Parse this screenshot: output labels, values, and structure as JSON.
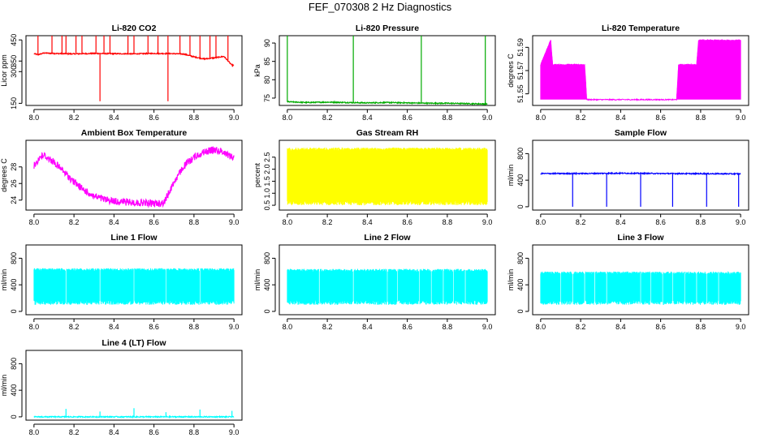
{
  "figure_title": "FEF_070308  2 Hz Diagnostics",
  "chart_data": [
    {
      "type": "line",
      "title": "Li-820 CO2",
      "ylabel": "Licor ppm",
      "xlabel": "",
      "color": "#ff0000",
      "xlim": [
        8.0,
        9.0
      ],
      "ylim": [
        140,
        470
      ],
      "xticks": [
        "8.0",
        "8.2",
        "8.4",
        "8.6",
        "8.8",
        "9.0"
      ],
      "yticks": [
        150,
        300,
        350,
        450
      ],
      "series": [
        {
          "x": [
            8.0,
            8.02,
            8.05,
            8.1,
            8.2,
            8.3,
            8.4,
            8.5,
            8.6,
            8.7,
            8.75,
            8.8,
            8.85,
            8.9,
            8.95,
            8.99
          ],
          "values": [
            385,
            380,
            388,
            386,
            384,
            386,
            385,
            384,
            386,
            385,
            383,
            370,
            360,
            365,
            372,
            330
          ]
        }
      ],
      "spikes_up": [
        8.02,
        8.09,
        8.14,
        8.16,
        8.21,
        8.24,
        8.31,
        8.35,
        8.38,
        8.47,
        8.5,
        8.57,
        8.62,
        8.67,
        8.73,
        8.78,
        8.83,
        8.88,
        8.91,
        8.97
      ],
      "spikes_down": [
        8.33,
        8.67
      ]
    },
    {
      "type": "line",
      "title": "Li-820 Pressure",
      "ylabel": "kPa",
      "xlabel": "",
      "color": "#00aa00",
      "xlim": [
        8.0,
        9.0
      ],
      "ylim": [
        73,
        92
      ],
      "xticks": [
        "8.0",
        "8.2",
        "8.4",
        "8.6",
        "8.8",
        "9.0"
      ],
      "yticks": [
        75,
        80,
        85,
        90
      ],
      "series": [
        {
          "x": [
            8.0,
            8.1,
            8.2,
            8.3,
            8.4,
            8.5,
            8.6,
            8.7,
            8.8,
            8.9,
            8.99
          ],
          "values": [
            74.0,
            73.8,
            73.9,
            73.8,
            73.7,
            73.8,
            73.7,
            73.6,
            73.6,
            73.5,
            73.4
          ]
        }
      ],
      "spikes_up": [
        8.0,
        8.33,
        8.67,
        8.99
      ]
    },
    {
      "type": "line",
      "title": "Li-820 Temperature",
      "ylabel": "degrees C",
      "xlabel": "",
      "color": "#ff00ff",
      "xlim": [
        8.0,
        9.0
      ],
      "ylim": [
        51.54,
        51.6
      ],
      "xticks": [
        "8.0",
        "8.2",
        "8.4",
        "8.6",
        "8.8",
        "9.0"
      ],
      "yticks": [
        51.55,
        51.57,
        51.59
      ],
      "series": [
        {
          "x": [
            8.0,
            8.05,
            8.06,
            8.22,
            8.23,
            8.68,
            8.69,
            8.78,
            8.79,
            8.99
          ],
          "values": [
            51.575,
            51.596,
            51.575,
            51.575,
            51.545,
            51.545,
            51.575,
            51.575,
            51.596,
            51.596
          ]
        }
      ]
    },
    {
      "type": "line",
      "title": "Ambient Box Temperature",
      "ylabel": "degrees C",
      "xlabel": "",
      "color": "#ff00ff",
      "xlim": [
        8.0,
        9.0
      ],
      "ylim": [
        22.8,
        31.2
      ],
      "xticks": [
        "8.0",
        "8.2",
        "8.4",
        "8.6",
        "8.8",
        "9.0"
      ],
      "yticks": [
        24,
        26,
        28
      ],
      "series": [
        {
          "x": [
            8.0,
            8.03,
            8.05,
            8.1,
            8.15,
            8.2,
            8.25,
            8.3,
            8.35,
            8.4,
            8.45,
            8.5,
            8.55,
            8.6,
            8.65,
            8.7,
            8.75,
            8.8,
            8.85,
            8.9,
            8.95,
            8.99
          ],
          "values": [
            28.5,
            29.6,
            29.8,
            29.0,
            27.8,
            26.6,
            25.6,
            24.9,
            24.5,
            24.3,
            24.2,
            24.1,
            24.1,
            24.0,
            24.1,
            26.6,
            28.5,
            29.6,
            30.2,
            30.5,
            30.2,
            29.6
          ]
        }
      ]
    },
    {
      "type": "line",
      "title": "Gas Stream RH",
      "ylabel": "percent",
      "xlabel": "",
      "color": "#ffff00",
      "xlim": [
        8.0,
        9.0
      ],
      "ylim": [
        0.3,
        3.2
      ],
      "xticks": [
        "8.0",
        "8.2",
        "8.4",
        "8.6",
        "8.8",
        "9.0"
      ],
      "yticks": [
        "0.5",
        "1.0",
        "1.5",
        "2.0",
        "2.5"
      ],
      "series": [
        {
          "x": [
            8.0,
            8.5,
            8.99
          ],
          "values": [
            2.9,
            2.9,
            2.9
          ],
          "min_values": [
            0.5,
            0.5,
            0.5
          ]
        }
      ]
    },
    {
      "type": "line",
      "title": "Sample Flow",
      "ylabel": "ml/min",
      "xlabel": "",
      "color": "#0000ff",
      "xlim": [
        8.0,
        9.0
      ],
      "ylim": [
        -50,
        1000
      ],
      "xticks": [
        "8.0",
        "8.2",
        "8.4",
        "8.6",
        "8.8",
        "9.0"
      ],
      "yticks": [
        0,
        400,
        800
      ],
      "series": [
        {
          "x": [
            8.0,
            8.2,
            8.4,
            8.6,
            8.8,
            8.99
          ],
          "values": [
            500,
            500,
            505,
            500,
            498,
            495
          ]
        }
      ],
      "spikes_down": [
        8.16,
        8.33,
        8.5,
        8.66,
        8.83,
        8.99
      ]
    },
    {
      "type": "line",
      "title": "Line 1 Flow",
      "ylabel": "ml/min",
      "xlabel": "",
      "color": "#00ffff",
      "xlim": [
        8.0,
        9.0
      ],
      "ylim": [
        -50,
        1000
      ],
      "xticks": [
        "8.0",
        "8.2",
        "8.4",
        "8.6",
        "8.8",
        "9.0"
      ],
      "yticks": [
        0,
        400,
        800
      ],
      "series": [
        {
          "x": [
            8.0,
            8.99
          ],
          "values": [
            650,
            650
          ],
          "min_values": [
            100,
            100
          ]
        }
      ],
      "gaps": [
        8.16,
        8.33,
        8.5,
        8.66,
        8.83
      ]
    },
    {
      "type": "line",
      "title": "Line 2 Flow",
      "ylabel": "ml/min",
      "xlabel": "",
      "color": "#00ffff",
      "xlim": [
        8.0,
        9.0
      ],
      "ylim": [
        -50,
        1000
      ],
      "xticks": [
        "8.0",
        "8.2",
        "8.4",
        "8.6",
        "8.8",
        "9.0"
      ],
      "yticks": [
        0,
        400,
        800
      ],
      "series": [
        {
          "x": [
            8.0,
            8.99
          ],
          "values": [
            640,
            640
          ],
          "min_values": [
            100,
            100
          ]
        }
      ],
      "gaps": [
        8.16,
        8.33,
        8.5,
        8.55,
        8.66,
        8.72,
        8.78,
        8.83,
        8.89
      ]
    },
    {
      "type": "line",
      "title": "Line 3 Flow",
      "ylabel": "ml/min",
      "xlabel": "",
      "color": "#00ffff",
      "xlim": [
        8.0,
        9.0
      ],
      "ylim": [
        -50,
        1000
      ],
      "xticks": [
        "8.0",
        "8.2",
        "8.4",
        "8.6",
        "8.8",
        "9.0"
      ],
      "yticks": [
        0,
        400,
        800
      ],
      "series": [
        {
          "x": [
            8.0,
            8.99
          ],
          "values": [
            600,
            600
          ],
          "min_values": [
            100,
            100
          ]
        }
      ],
      "gaps": [
        8.1,
        8.16,
        8.22,
        8.27,
        8.33,
        8.5,
        8.55,
        8.61,
        8.66,
        8.72,
        8.78,
        8.83,
        8.89
      ]
    },
    {
      "type": "line",
      "title": "Line 4 (LT) Flow",
      "ylabel": "ml/min",
      "xlabel": "",
      "color": "#00ffff",
      "xlim": [
        8.0,
        9.0
      ],
      "ylim": [
        -50,
        1000
      ],
      "xticks": [
        "8.0",
        "8.2",
        "8.4",
        "8.6",
        "8.8",
        "9.0"
      ],
      "yticks": [
        0,
        400,
        800
      ],
      "series": [
        {
          "x": [
            8.0,
            8.99
          ],
          "values": [
            0,
            0
          ]
        }
      ],
      "spikes_up": [
        8.16,
        8.33,
        8.5,
        8.66,
        8.83,
        8.99
      ],
      "spike_values": [
        120,
        80,
        130,
        70,
        110,
        90
      ]
    }
  ]
}
